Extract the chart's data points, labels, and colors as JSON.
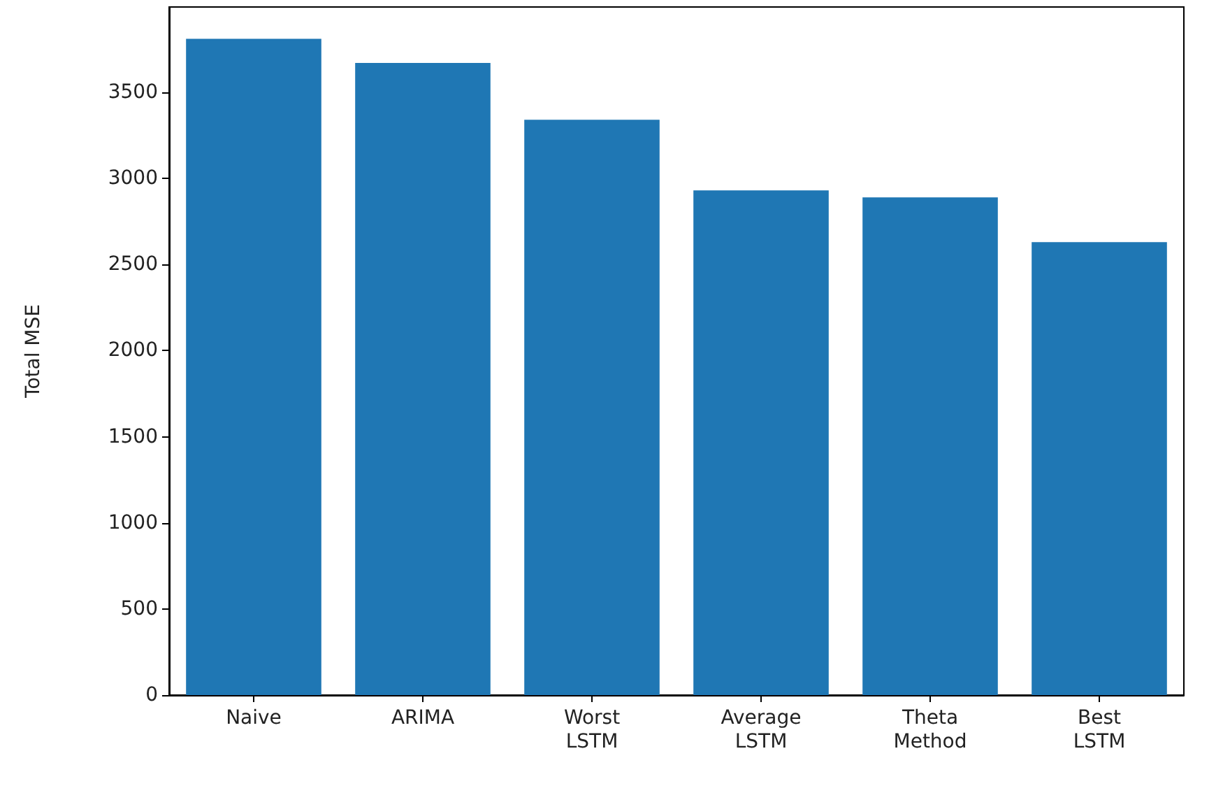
{
  "chart_data": {
    "type": "bar",
    "ylabel": "Total MSE",
    "categories": [
      "Naive",
      "ARIMA",
      "Worst\nLSTM",
      "Average\nLSTM",
      "Theta\nMethod",
      "Best\nLSTM"
    ],
    "values": [
      3810,
      3670,
      3340,
      2930,
      2890,
      2630
    ],
    "color": "#1f77b4",
    "ylim": [
      0,
      3995
    ],
    "yticks": [
      0,
      500,
      1000,
      1500,
      2000,
      2500,
      3000,
      3500
    ],
    "grid": false
  }
}
